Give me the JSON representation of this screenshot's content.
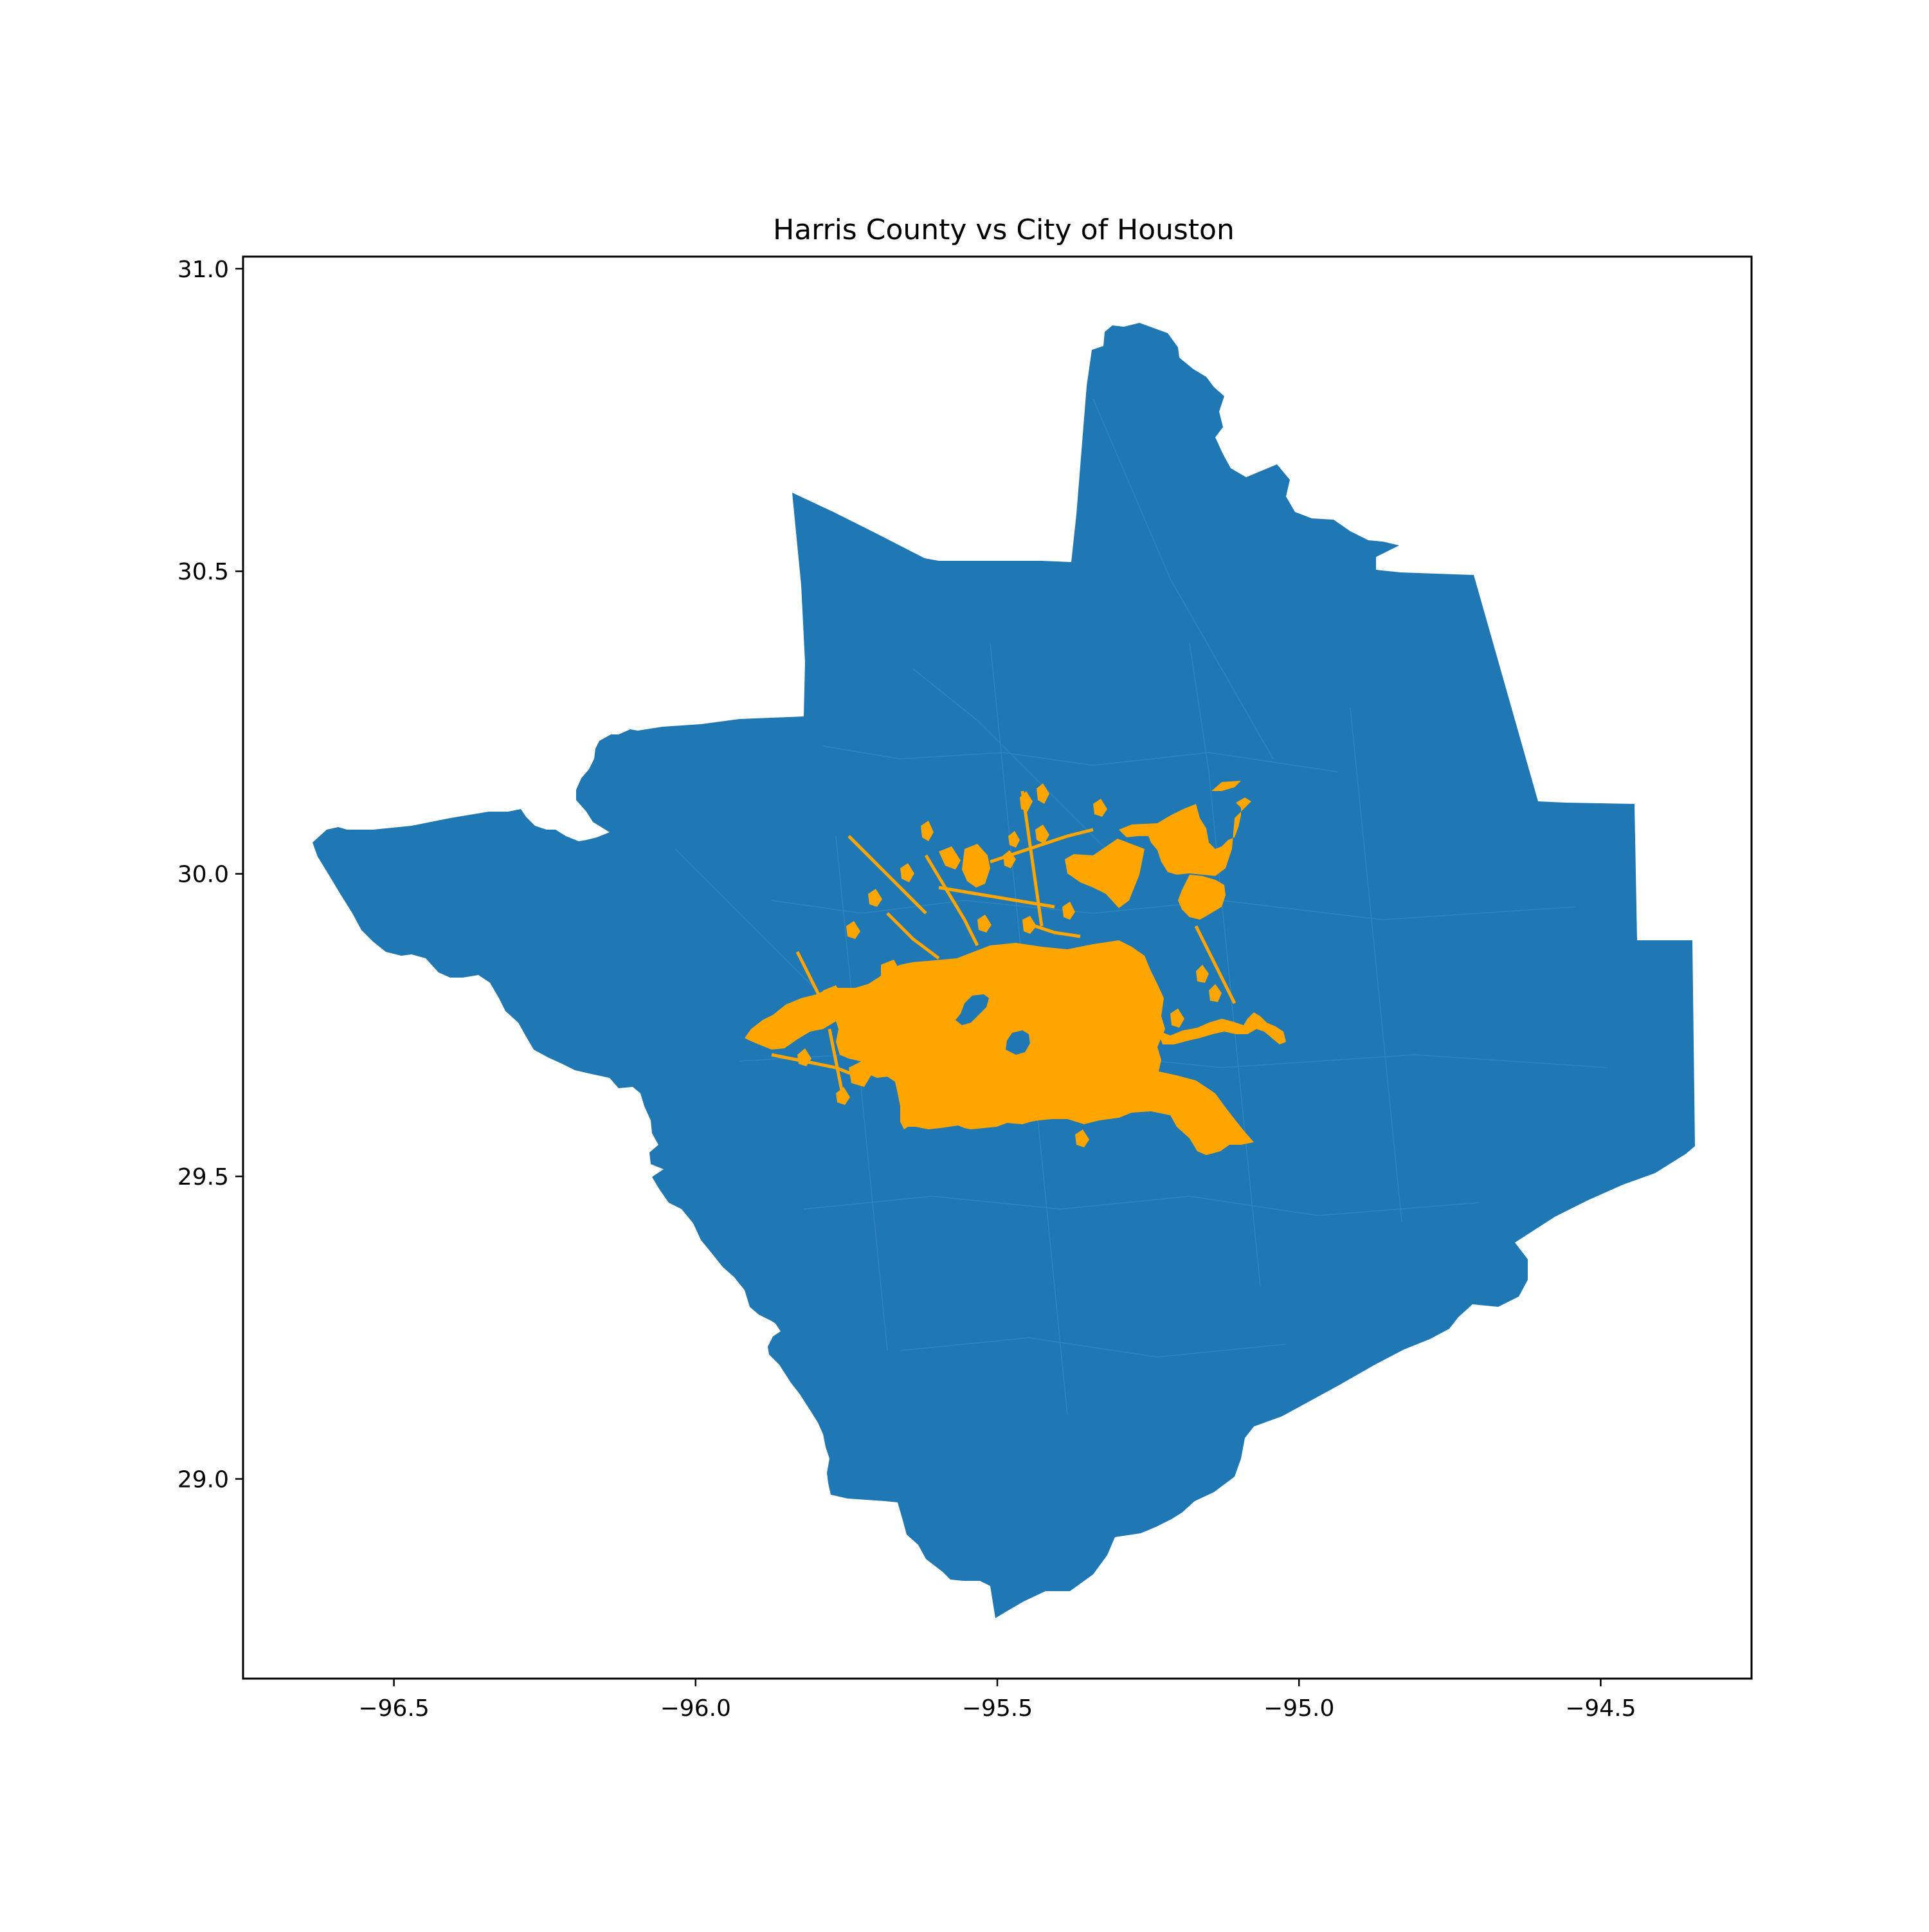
{
  "chart_data": {
    "type": "map",
    "title": "Harris County vs City of Houston",
    "xlabel": "",
    "ylabel": "",
    "xlim": [
      -96.75,
      -94.25
    ],
    "ylim": [
      28.67,
      31.02
    ],
    "x_ticks": [
      -96.5,
      -96.0,
      -95.5,
      -95.0,
      -94.5
    ],
    "x_tick_labels": [
      "−96.5",
      "−96.0",
      "−95.5",
      "−95.0",
      "−94.5"
    ],
    "y_ticks": [
      29.0,
      29.5,
      30.0,
      30.5,
      31.0
    ],
    "y_tick_labels": [
      "29.0",
      "29.5",
      "30.0",
      "30.5",
      "31.0"
    ],
    "grid": false,
    "legend": "none",
    "layers": [
      {
        "role": "county-region",
        "color": "#1f77b4"
      },
      {
        "role": "city-region",
        "color": "#ffa500"
      }
    ]
  }
}
